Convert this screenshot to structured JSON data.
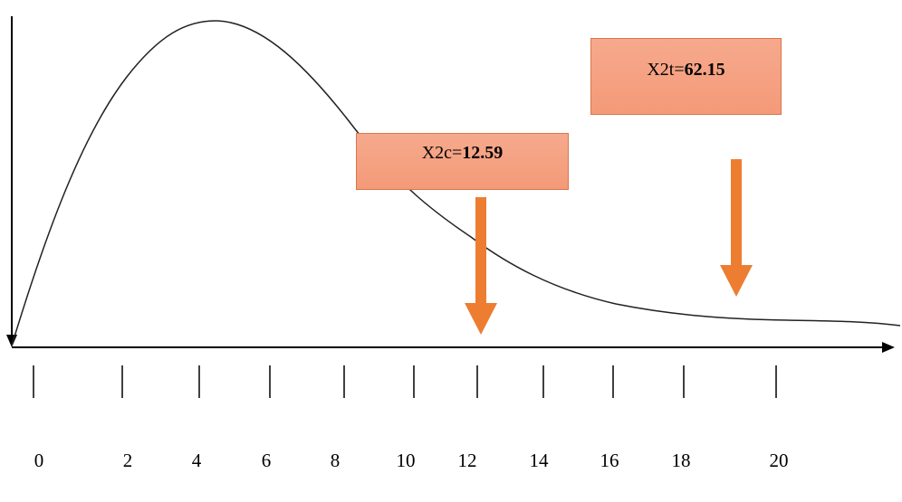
{
  "x_axis": {
    "tick_labels": [
      "0",
      "2",
      "4",
      "6",
      "8",
      "10",
      "12",
      "14",
      "16",
      "18",
      "20"
    ]
  },
  "callouts": {
    "x2c": {
      "label": "X2c=",
      "value": "12.59"
    },
    "x2t": {
      "label": "X2t=",
      "value": "62.15"
    }
  },
  "colors": {
    "curve": "#222222",
    "axis": "#000000",
    "arrow": "#ed7d31",
    "box_fill": "#f4a080",
    "box_border": "#d9774a"
  }
}
